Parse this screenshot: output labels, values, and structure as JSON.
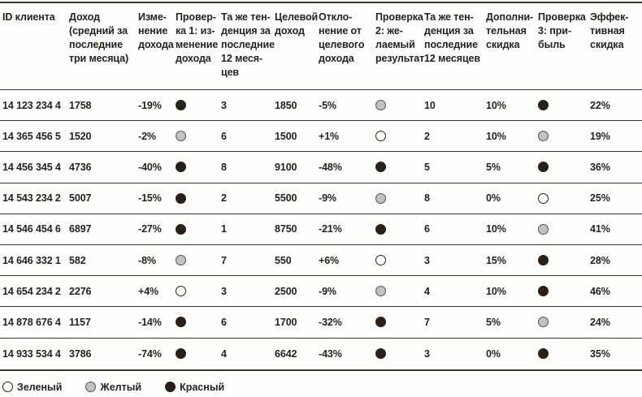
{
  "table": {
    "columns": [
      {
        "key": "id",
        "type": "text",
        "label": "ID клиента"
      },
      {
        "key": "income",
        "type": "text",
        "label": "Доход\n(средний за\nпоследние\nтри месяца)"
      },
      {
        "key": "income_change",
        "type": "text",
        "label": "Изме-\nнение\nдохода"
      },
      {
        "key": "check1",
        "type": "dot",
        "label": "Провер-\nка 1: из-\nменение\nдохода"
      },
      {
        "key": "trend_3m",
        "type": "text",
        "label": "Та же тен-\nденция за\nпоследние\n12 меся-\nцев"
      },
      {
        "key": "target_income",
        "type": "text",
        "label": "Целевой\nдоход"
      },
      {
        "key": "target_deviation",
        "type": "text",
        "label": "Откло-\nнение от\nцелевого\nдохода"
      },
      {
        "key": "check2",
        "type": "dot",
        "label": "Проверка\n2: же-\nлаемый\nрезультат"
      },
      {
        "key": "trend_12m",
        "type": "text",
        "label": "Та же тен-\nденция за\nпоследние\n12 месяцев"
      },
      {
        "key": "extra_discount",
        "type": "text",
        "label": "Дополни-\nтельная\nскидка"
      },
      {
        "key": "check3",
        "type": "dot",
        "label": "Проверка\n3: при-\nбыль"
      },
      {
        "key": "effective_discount",
        "type": "text",
        "label": "Эффек-\nтивная\nскидка"
      }
    ],
    "rows": [
      {
        "id": "14 123 234 4",
        "income": "1758",
        "income_change": "-19%",
        "check1": "red",
        "trend_3m": "3",
        "target_income": "1850",
        "target_deviation": "-5%",
        "check2": "yellow",
        "trend_12m": "10",
        "extra_discount": "10%",
        "check3": "red",
        "effective_discount": "22%"
      },
      {
        "id": "14 365 456 5",
        "income": "1520",
        "income_change": "-2%",
        "check1": "yellow",
        "trend_3m": "6",
        "target_income": "1500",
        "target_deviation": "+1%",
        "check2": "green",
        "trend_12m": "2",
        "extra_discount": "10%",
        "check3": "yellow",
        "effective_discount": "19%"
      },
      {
        "id": "14 456 345 4",
        "income": "4736",
        "income_change": "-40%",
        "check1": "red",
        "trend_3m": "8",
        "target_income": "9100",
        "target_deviation": "-48%",
        "check2": "red",
        "trend_12m": "5",
        "extra_discount": "5%",
        "check3": "red",
        "effective_discount": "36%"
      },
      {
        "id": "14 543 234 2",
        "income": "5007",
        "income_change": "-15%",
        "check1": "red",
        "trend_3m": "2",
        "target_income": "5500",
        "target_deviation": "-9%",
        "check2": "yellow",
        "trend_12m": "8",
        "extra_discount": "0%",
        "check3": "green",
        "effective_discount": "25%"
      },
      {
        "id": "14 546 454 6",
        "income": "6897",
        "income_change": "-27%",
        "check1": "red",
        "trend_3m": "1",
        "target_income": "8750",
        "target_deviation": "-21%",
        "check2": "red",
        "trend_12m": "6",
        "extra_discount": "10%",
        "check3": "yellow",
        "effective_discount": "41%"
      },
      {
        "id": "14 646 332 1",
        "income": "582",
        "income_change": "-8%",
        "check1": "yellow",
        "trend_3m": "7",
        "target_income": "550",
        "target_deviation": "+6%",
        "check2": "green",
        "trend_12m": "3",
        "extra_discount": "15%",
        "check3": "red",
        "effective_discount": "28%"
      },
      {
        "id": "14 654 234 2",
        "income": "2276",
        "income_change": "+4%",
        "check1": "green",
        "trend_3m": "3",
        "target_income": "2500",
        "target_deviation": "-9%",
        "check2": "yellow",
        "trend_12m": "4",
        "extra_discount": "10%",
        "check3": "red",
        "effective_discount": "46%"
      },
      {
        "id": "14 878 676 4",
        "income": "1157",
        "income_change": "-14%",
        "check1": "red",
        "trend_3m": "6",
        "target_income": "1700",
        "target_deviation": "-32%",
        "check2": "red",
        "trend_12m": "7",
        "extra_discount": "5%",
        "check3": "yellow",
        "effective_discount": "24%"
      },
      {
        "id": "14 933 534 4",
        "income": "3786",
        "income_change": "-74%",
        "check1": "red",
        "trend_3m": "4",
        "target_income": "6642",
        "target_deviation": "-43%",
        "check2": "red",
        "trend_12m": "3",
        "extra_discount": "0%",
        "check3": "red",
        "effective_discount": "35%"
      }
    ]
  },
  "legend": {
    "items": [
      {
        "color": "green",
        "label": "Зеленый"
      },
      {
        "color": "yellow",
        "label": "Желтый"
      },
      {
        "color": "red",
        "label": "Красный"
      }
    ]
  },
  "colors": {
    "status_green_fill": "#ffffff",
    "status_yellow_fill": "#c2c1bf",
    "status_red_fill": "#2b2015",
    "text": "#27221f",
    "rule_line": "#3a342e",
    "background": "#fdfdfc"
  }
}
